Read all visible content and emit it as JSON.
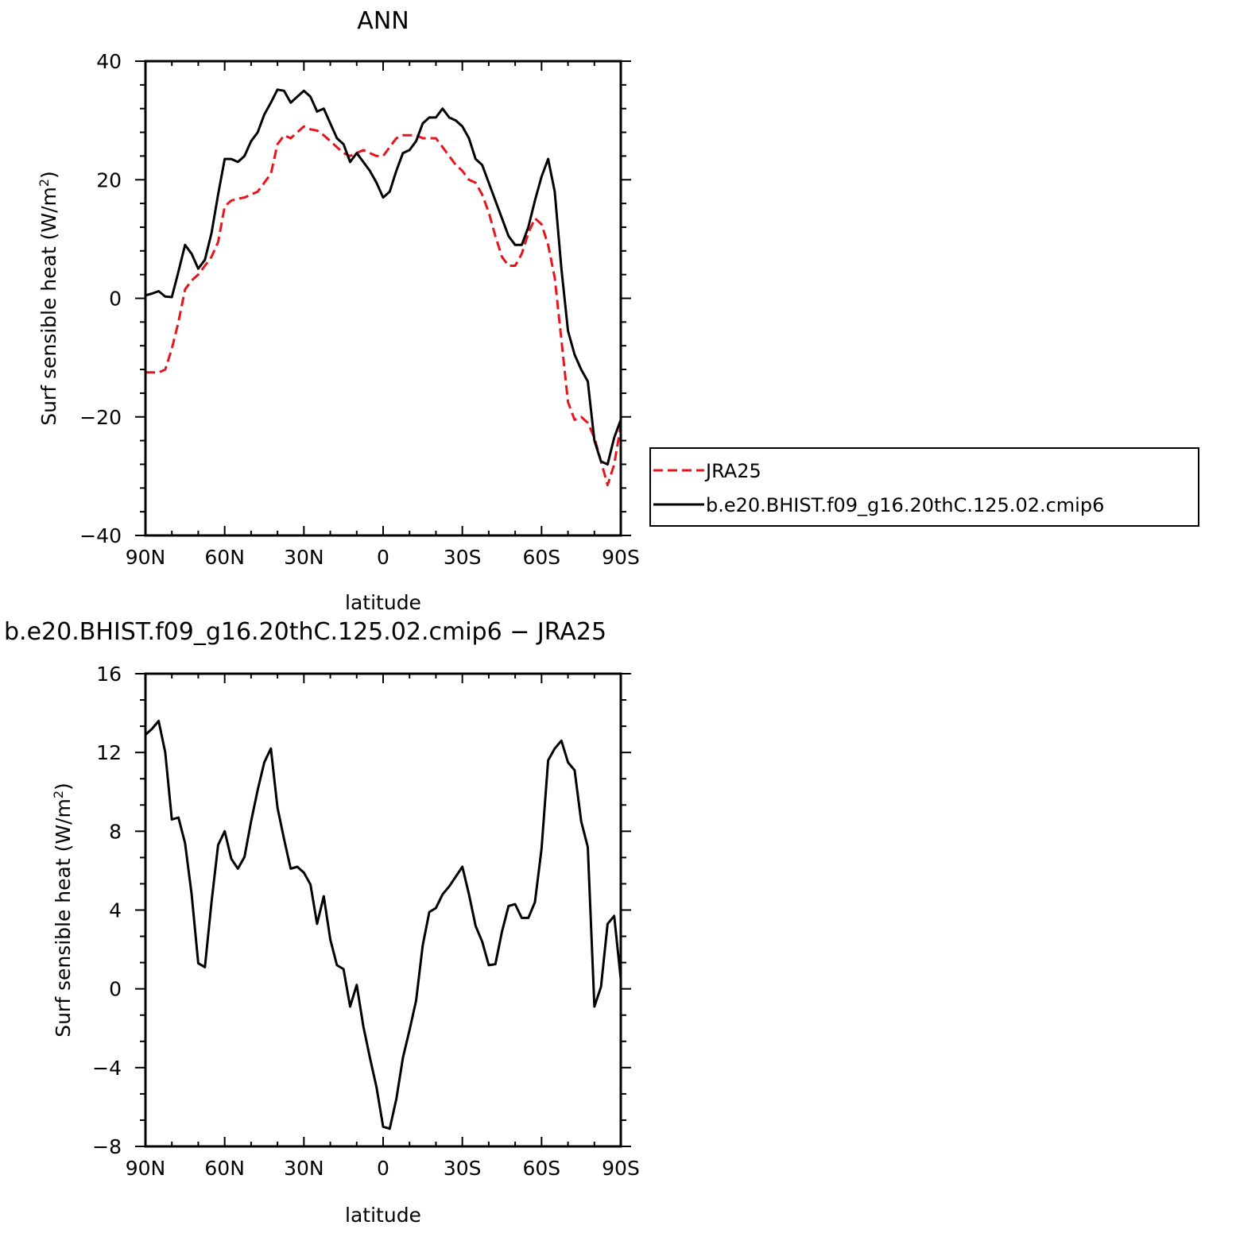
{
  "chart_data": [
    {
      "type": "line",
      "title": "ANN",
      "xlabel": "latitude",
      "ylabel": "Surf sensible heat (W/m",
      "ylabel_superscript": "2",
      "ylabel_suffix": ")",
      "xlim": [
        90,
        -90
      ],
      "ylim": [
        -40,
        40
      ],
      "x_ticks": [
        90,
        60,
        30,
        0,
        -30,
        -60,
        -90
      ],
      "x_tick_labels": [
        "90N",
        "60N",
        "30N",
        "0",
        "30S",
        "60S",
        "90S"
      ],
      "y_ticks": [
        -40,
        -20,
        0,
        20,
        40
      ],
      "y_tick_labels": [
        "−40",
        "−20",
        "0",
        "20",
        "40"
      ],
      "legend": {
        "position": "right",
        "entries": [
          "JRA25",
          "b.e20.BHIST.f09_g16.20thC.125.02.cmip6"
        ]
      },
      "series": [
        {
          "name": "JRA25",
          "color": "#e8141c",
          "dash": "dashed",
          "x": [
            90,
            87.5,
            85,
            82.5,
            80,
            77.5,
            75,
            72.5,
            70,
            67.5,
            65,
            62.5,
            60,
            57.5,
            55,
            52.5,
            50,
            47.5,
            45,
            42.5,
            40,
            37.5,
            35,
            32.5,
            30,
            27.5,
            25,
            22.5,
            20,
            17.5,
            15,
            12.5,
            10,
            7.5,
            5,
            2.5,
            0,
            -2.5,
            -5,
            -7.5,
            -10,
            -12.5,
            -15,
            -17.5,
            -20,
            -22.5,
            -25,
            -27.5,
            -30,
            -32.5,
            -35,
            -37.5,
            -40,
            -42.5,
            -45,
            -47.5,
            -50,
            -52.5,
            -55,
            -57.5,
            -60,
            -62.5,
            -65,
            -67.5,
            -70,
            -72.5,
            -75,
            -77.5,
            -80,
            -82.5,
            -85,
            -87.5,
            -90
          ],
          "y": [
            -12.5,
            -12.5,
            -12.5,
            -12,
            -8.5,
            -4,
            1.5,
            3,
            4,
            5.5,
            7,
            9.5,
            15.5,
            16.5,
            16.8,
            17,
            17.5,
            18,
            19.5,
            21,
            26,
            27.5,
            27,
            28,
            29,
            28.5,
            28.3,
            27.5,
            26.5,
            25.5,
            24.5,
            24,
            24.5,
            25,
            24.5,
            24,
            24,
            25.5,
            27,
            27.5,
            27.5,
            27.5,
            27,
            27,
            27,
            25.5,
            24,
            22.5,
            21.5,
            20,
            19.5,
            17.5,
            14.5,
            10.5,
            7,
            5.5,
            5.5,
            7.5,
            11,
            13.5,
            12.5,
            9,
            3.5,
            -7,
            -17.5,
            -20.5,
            -20,
            -21,
            -23.5,
            -27.5,
            -31.5,
            -28,
            -21.5
          ]
        },
        {
          "name": "b.e20.BHIST.f09_g16.20thC.125.02.cmip6",
          "color": "#000000",
          "dash": "solid",
          "x": [
            90,
            87.5,
            85,
            82.5,
            80,
            77.5,
            75,
            72.5,
            70,
            67.5,
            65,
            62.5,
            60,
            57.5,
            55,
            52.5,
            50,
            47.5,
            45,
            42.5,
            40,
            37.5,
            35,
            32.5,
            30,
            27.5,
            25,
            22.5,
            20,
            17.5,
            15,
            12.5,
            10,
            7.5,
            5,
            2.5,
            0,
            -2.5,
            -5,
            -7.5,
            -10,
            -12.5,
            -15,
            -17.5,
            -20,
            -22.5,
            -25,
            -27.5,
            -30,
            -32.5,
            -35,
            -37.5,
            -40,
            -42.5,
            -45,
            -47.5,
            -50,
            -52.5,
            -55,
            -57.5,
            -60,
            -62.5,
            -65,
            -67.5,
            -70,
            -72.5,
            -75,
            -77.5,
            -80,
            -82.5,
            -85,
            -87.5,
            -90
          ],
          "y": [
            0.5,
            0.8,
            1.2,
            0.3,
            0.2,
            4.5,
            9,
            7.5,
            5,
            6.5,
            11,
            17.5,
            23.5,
            23.5,
            23,
            24,
            26.5,
            28,
            31,
            33,
            35.2,
            35,
            33,
            34,
            35,
            34,
            31.5,
            32,
            29.5,
            27,
            26,
            23,
            24.5,
            23,
            21.5,
            19.5,
            17,
            18,
            21.5,
            24.5,
            25,
            26.5,
            29.5,
            30.5,
            30.5,
            32,
            30.5,
            30,
            29,
            27,
            23.5,
            22.5,
            19.5,
            16.5,
            13.5,
            10.5,
            9,
            9,
            12,
            16.5,
            20.5,
            23.5,
            18,
            5,
            -5.5,
            -9.5,
            -12,
            -14,
            -24,
            -27.5,
            -28,
            -23.5,
            -20.5
          ]
        }
      ]
    },
    {
      "type": "line",
      "title": "b.e20.BHIST.f09_g16.20thC.125.02.cmip6 − JRA25",
      "xlabel": "latitude",
      "ylabel": "Surf sensible heat (W/m",
      "ylabel_superscript": "2",
      "ylabel_suffix": ")",
      "xlim": [
        90,
        -90
      ],
      "ylim": [
        -8,
        16
      ],
      "x_ticks": [
        90,
        60,
        30,
        0,
        -30,
        -60,
        -90
      ],
      "x_tick_labels": [
        "90N",
        "60N",
        "30N",
        "0",
        "30S",
        "60S",
        "90S"
      ],
      "y_ticks": [
        -8,
        -4,
        0,
        4,
        8,
        12,
        16
      ],
      "y_tick_labels": [
        "−8",
        "−4",
        "0",
        "4",
        "8",
        "12",
        "16"
      ],
      "series": [
        {
          "color": "#000000",
          "dash": "solid",
          "x": [
            90,
            87.5,
            85,
            82.5,
            80,
            77.5,
            75,
            72.5,
            70,
            67.5,
            65,
            62.5,
            60,
            57.5,
            55,
            52.5,
            50,
            47.5,
            45,
            42.5,
            40,
            37.5,
            35,
            32.5,
            30,
            27.5,
            25,
            22.5,
            20,
            17.5,
            15,
            12.5,
            10,
            7.5,
            5,
            2.5,
            0,
            -2.5,
            -5,
            -7.5,
            -10,
            -12.5,
            -15,
            -17.5,
            -20,
            -22.5,
            -25,
            -27.5,
            -30,
            -32.5,
            -35,
            -37.5,
            -40,
            -42.5,
            -45,
            -47.5,
            -50,
            -52.5,
            -55,
            -57.5,
            -60,
            -62.5,
            -65,
            -67.5,
            -70,
            -72.5,
            -75,
            -77.5,
            -80,
            -82.5,
            -85,
            -87.5,
            -90
          ],
          "y": [
            12.9,
            13.2,
            13.6,
            12,
            8.6,
            8.7,
            7.4,
            4.8,
            1.3,
            1.1,
            4.4,
            7.3,
            8,
            6.6,
            6.1,
            6.7,
            8.5,
            10.1,
            11.5,
            12.2,
            9.2,
            7.6,
            6.1,
            6.2,
            5.9,
            5.3,
            3.3,
            4.7,
            2.5,
            1.2,
            1,
            -0.9,
            0.2,
            -1.9,
            -3.5,
            -5,
            -7,
            -7.1,
            -5.6,
            -3.5,
            -2.1,
            -0.6,
            2.2,
            3.9,
            4.1,
            4.8,
            5.2,
            5.7,
            6.2,
            4.8,
            3.2,
            2.4,
            1.2,
            1.25,
            2.9,
            4.2,
            4.3,
            3.6,
            3.6,
            4.4,
            7.1,
            11.6,
            12.2,
            12.6,
            11.5,
            11.1,
            8.5,
            7.2,
            -0.9,
            0.1,
            3.3,
            3.7,
            0.5
          ]
        }
      ]
    }
  ]
}
